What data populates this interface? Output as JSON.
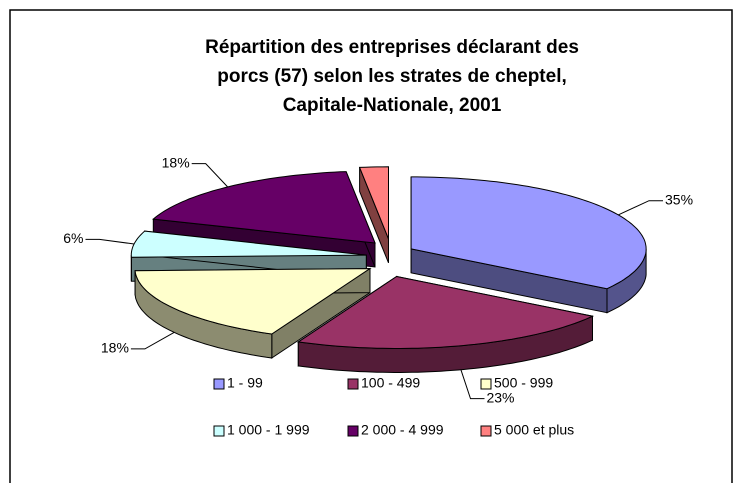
{
  "chart_data": {
    "type": "pie3d",
    "title": [
      "Répartition des entreprises déclarant des",
      "porcs (57) selon les strates de cheptel,",
      "Capitale-Nationale, 2001"
    ],
    "categories": [
      "1 - 99",
      "100 - 499",
      "500 - 999",
      "1 000 - 1 999",
      "2 000 - 4 999",
      "5 000 et plus"
    ],
    "values": [
      35,
      23,
      18,
      6,
      18,
      2
    ],
    "value_labels": [
      "35%",
      "23%",
      "18%",
      "6%",
      "18%",
      null
    ],
    "colors": [
      "#9999ff",
      "#993366",
      "#ffffcc",
      "#ccffff",
      "#660066",
      "#ff8080"
    ],
    "legend": "bottom"
  }
}
